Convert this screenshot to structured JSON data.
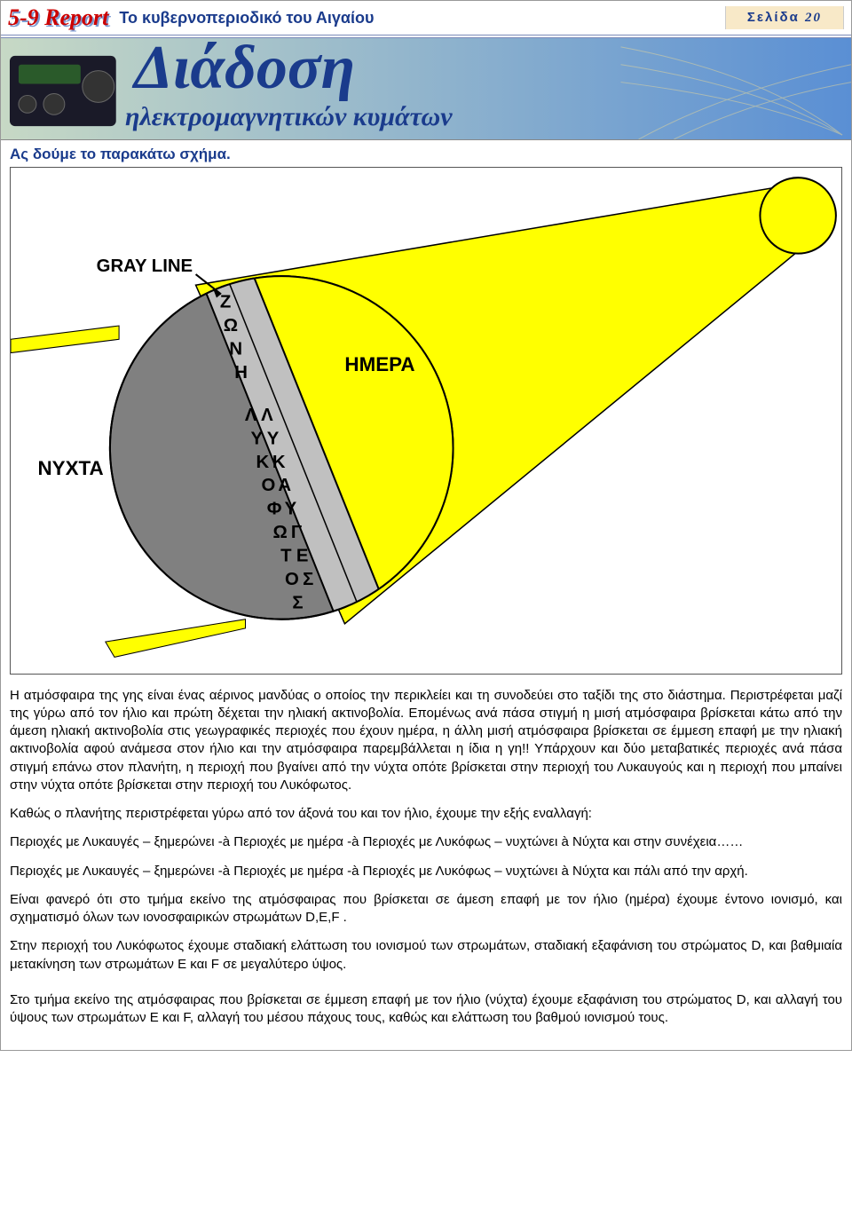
{
  "header": {
    "brand": "5-9 Report",
    "brand_color": "#cc0000",
    "brand_shadow_color": "#7d9bd1",
    "subtitle": "Το κυβερνοπεριοδικό του Αιγαίου",
    "subtitle_color": "#1a3b8c",
    "page_label": "Σελίδα",
    "page_label_color": "#1a3b8c",
    "page_number": "20",
    "page_box_bg": "#f8e9c8"
  },
  "banner": {
    "bg_gradient_start": "#c7d9c5",
    "bg_gradient_end": "#5a8fd4",
    "title": "Διάδοση",
    "title_color": "#1a3b8c",
    "subtitle": "ηλεκτρομαγνητικών κυμάτων",
    "subtitle_color": "#1a3b8c",
    "radio_color": "#1a1a28"
  },
  "intro": {
    "text": "Ας δούμε το παρακάτω σχήμα.",
    "color": "#1a3b8c"
  },
  "diagram": {
    "bg": "#ffffff",
    "sun_fill": "#ffff00",
    "sun_stroke": "#000000",
    "cone_fill": "#ffff00",
    "cone_stroke": "#000000",
    "earth_day_fill": "#ffff00",
    "earth_night_fill": "#808080",
    "earth_twilight_fill": "#c0c0c0",
    "earth_stroke": "#000000",
    "label_gray_line": "GRAY LINE",
    "label_day": "ΗΜΕΡΑ",
    "label_night": "ΝΥΧΤΑ",
    "zone_letters": [
      "Ζ",
      "Ω",
      "Ν",
      "Η"
    ],
    "dusk_col1": [
      "Λ",
      "Υ",
      "Κ",
      "Ο",
      "Φ",
      "Ω",
      "Τ",
      "Ο",
      "Σ"
    ],
    "dusk_col2": [
      "Λ",
      "Υ",
      "Κ",
      "Α",
      "Υ",
      "Γ",
      "Ε",
      "Σ"
    ],
    "label_font_color": "#000000",
    "label_font_size": 20
  },
  "paragraphs": {
    "p1": "Η ατμόσφαιρα της γης  είναι ένας αέρινος μανδύας ο οποίος την περικλείει  και τη συνοδεύει στο ταξίδι της στο διάστημα. Περιστρέφεται μαζί της γύρω από τον ήλιο και πρώτη δέχεται την ηλιακή ακτινοβολία. Επομένως ανά πάσα στιγμή η μισή ατμόσφαιρα βρίσκεται κάτω από την άμεση ηλιακή ακτινοβολία στις γεωγραφικές περιοχές που έχουν ημέρα, η άλλη μισή ατμόσφαιρα βρίσκεται σε έμμεση επαφή  με την ηλιακή ακτινοβολία αφού ανάμεσα στον ήλιο και την ατμόσφαιρα παρεμβάλλεται η ίδια η γη!! Υπάρχουν και δύο μεταβατικές περιοχές ανά πάσα στιγμή επάνω στον πλανήτη, η περιοχή που βγαίνει από την νύχτα οπότε βρίσκεται στην περιοχή του Λυκαυγούς και η περιοχή που μπαίνει στην νύχτα οπότε βρίσκεται στην περιοχή του Λυκόφωτος.",
    "p2": "Καθώς ο πλανήτης περιστρέφεται γύρω από τον άξονά του και τον  ήλιο, έχουμε την εξής εναλλαγή:",
    "p3": "Περιοχές με Λυκαυγές – ξημερώνει -à  Περιοχές με ημέρα -à   Περιοχές με Λυκόφως – νυχτώνει à Νύχτα και στην συνέχεια……",
    "p4": "Περιοχές με Λυκαυγές – ξημερώνει -à  Περιοχές με ημέρα -à   Περιοχές με Λυκόφως – νυχτώνει à Νύχτα και πάλι από την αρχή.",
    "p5": "Είναι φανερό ότι στο τμήμα εκείνο της ατμόσφαιρας που βρίσκεται σε άμεση επαφή με τον ήλιο (ημέρα)  έχουμε έντονο ιονισμό, και σχηματισμό όλων των ιονοσφαιρικών στρωμάτων D,E,F .",
    "p6": "Στην περιοχή του Λυκόφωτος έχουμε σταδιακή ελάττωση του ιονισμού των στρωμάτων, σταδιακή εξαφάνιση του στρώματος D, και βαθμιαία μετακίνηση των στρωμάτων Ε και F σε μεγαλύτερο ύψος.",
    "p7": "Στο τμήμα εκείνο της ατμόσφαιρας που βρίσκεται σε έμμεση επαφή με τον ήλιο (νύχτα) έχουμε εξαφάνιση του στρώματος D, και αλλαγή του ύψους των στρωμάτων Ε και F, αλλαγή του μέσου πάχους τους, καθώς και ελάττωση του βαθμού ιονισμού τους."
  }
}
